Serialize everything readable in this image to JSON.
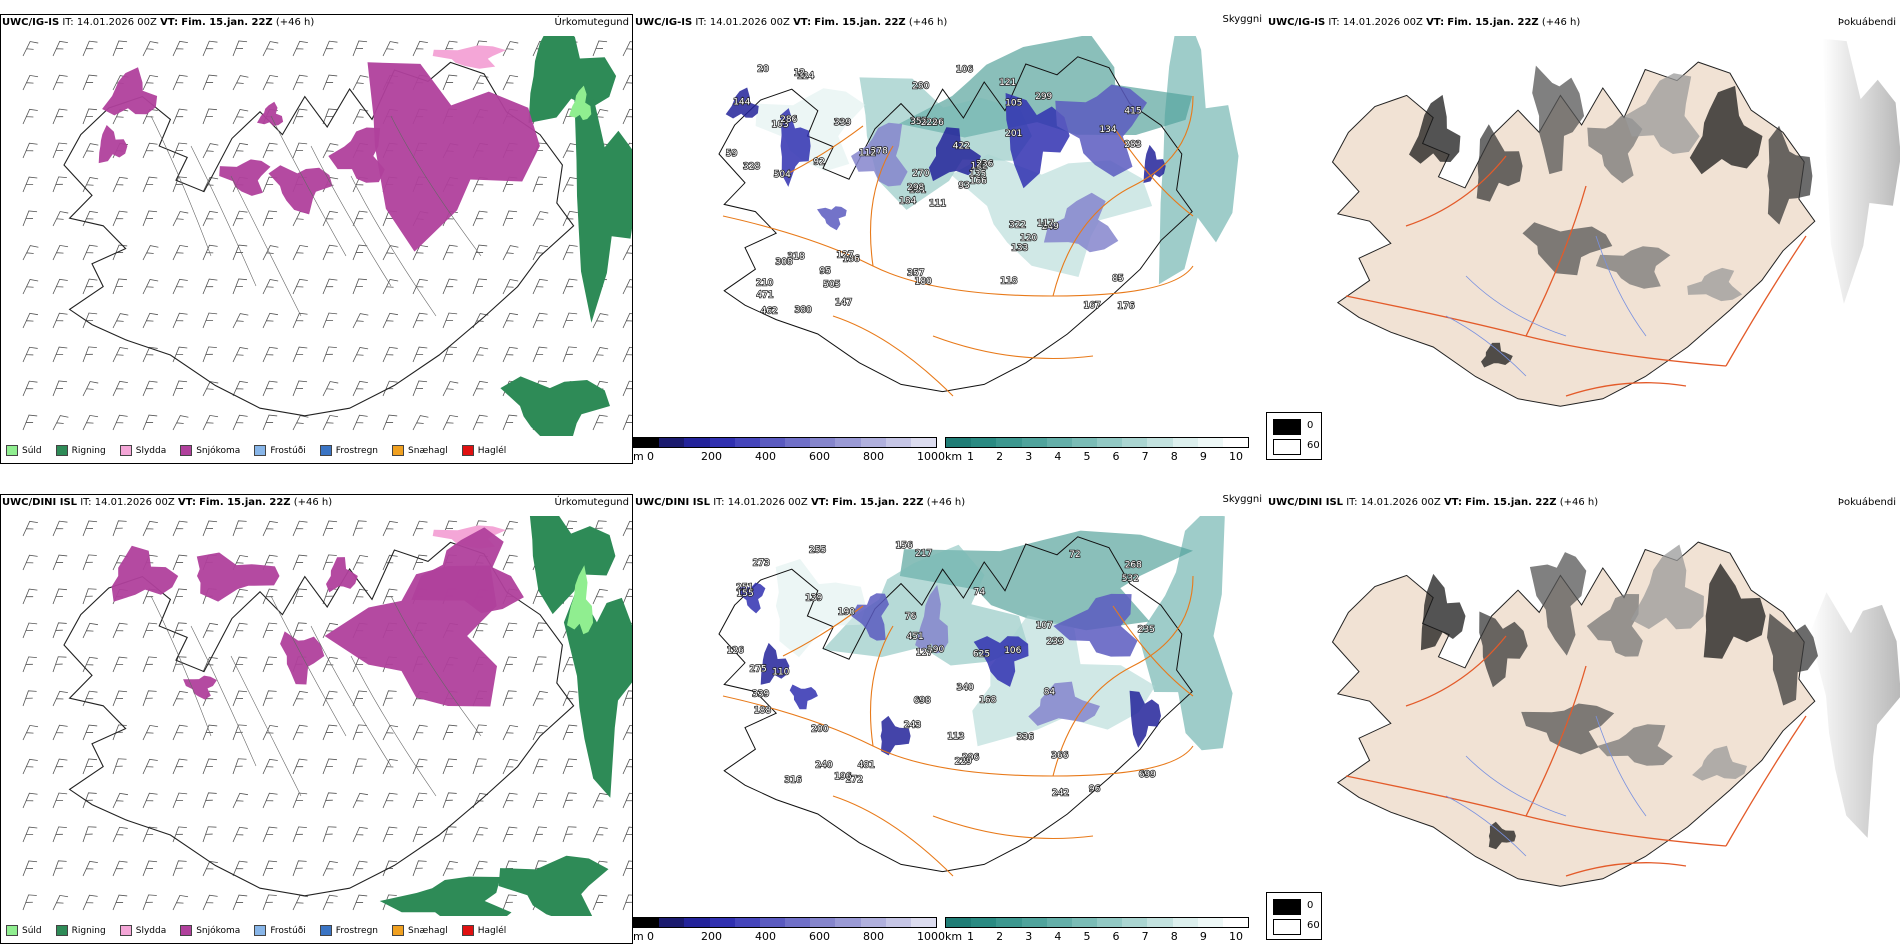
{
  "rows": [
    {
      "model": "UWC/IG-IS",
      "it_label": "IT:",
      "it_value": "14.01.2026 00Z",
      "vt_label": "VT:",
      "vt_value": "Fim. 15.jan. 22Z",
      "lead": "(+46 h)"
    },
    {
      "model": "UWC/DINI ISL",
      "it_label": "IT:",
      "it_value": "14.01.2026 00Z",
      "vt_label": "VT:",
      "vt_value": "Fim. 15.jan. 22Z",
      "lead": "(+46 h)"
    }
  ],
  "panel_titles": {
    "precip": "Úrkomutegund",
    "cloud": "Skyggni",
    "fog": "Þokuábendi"
  },
  "precip_legend": [
    {
      "label": "Súld",
      "color": "#90ee90"
    },
    {
      "label": "Rigning",
      "color": "#2e8b57"
    },
    {
      "label": "Slydda",
      "color": "#f4a6d7"
    },
    {
      "label": "Snjókoma",
      "color": "#b0409c"
    },
    {
      "label": "Frostúði",
      "color": "#87b5e8"
    },
    {
      "label": "Frostregn",
      "color": "#3a74c4"
    },
    {
      "label": "Snæhagl",
      "color": "#f0a020"
    },
    {
      "label": "Haglél",
      "color": "#e01010"
    }
  ],
  "cloud_base_scale": {
    "unit": "m",
    "ticks": [
      "0",
      "200",
      "400",
      "600",
      "800",
      "1000"
    ],
    "colors": [
      "#000000",
      "#1a1a6e",
      "#23239a",
      "#3030b0",
      "#4545bb",
      "#5a5ac0",
      "#7070c8",
      "#8585cc",
      "#9a9ad5",
      "#b0b0dd",
      "#c6c6e6",
      "#dcdcef"
    ]
  },
  "visibility_scale": {
    "unit": "km",
    "ticks": [
      "1",
      "2",
      "3",
      "4",
      "5",
      "6",
      "7",
      "8",
      "9",
      "10"
    ],
    "colors": [
      "#1f7d76",
      "#2a8a82",
      "#3c978f",
      "#4fa39c",
      "#64afa9",
      "#7abcb6",
      "#92c9c4",
      "#aad5d1",
      "#c3e2df",
      "#dcefed",
      "#eef8f7",
      "#ffffff"
    ]
  },
  "fog_legend": {
    "high_label": "0",
    "low_label": "60",
    "high_color": "#000000",
    "low_color": "#ffffff"
  },
  "cloud_labels_top": [
    "111",
    "103",
    "101",
    "210",
    "132",
    "186",
    "121",
    "96",
    "105",
    "93",
    "124",
    "176",
    "504",
    "415",
    "184",
    "201",
    "380",
    "355",
    "422",
    "318",
    "278",
    "471",
    "505",
    "222",
    "236",
    "249",
    "286",
    "280",
    "328",
    "322",
    "283",
    "298",
    "357",
    "270",
    "339",
    "299",
    "127",
    "167",
    "85",
    "117",
    "106",
    "112",
    "92",
    "133",
    "147",
    "59",
    "135",
    "462",
    "180",
    "166",
    "308",
    "134",
    "144",
    "120",
    "118",
    "95",
    "12",
    "20"
  ],
  "cloud_labels_bottom": [
    "126",
    "217",
    "107",
    "268",
    "251",
    "96",
    "110",
    "74",
    "76",
    "72",
    "190",
    "84",
    "156",
    "155",
    "139",
    "200",
    "296",
    "275",
    "340",
    "243",
    "336",
    "366",
    "532",
    "451",
    "240",
    "127",
    "168",
    "255",
    "272",
    "229",
    "339",
    "242",
    "625",
    "316",
    "196",
    "188",
    "233",
    "273",
    "481",
    "190",
    "113",
    "106",
    "699",
    "235",
    "698"
  ]
}
